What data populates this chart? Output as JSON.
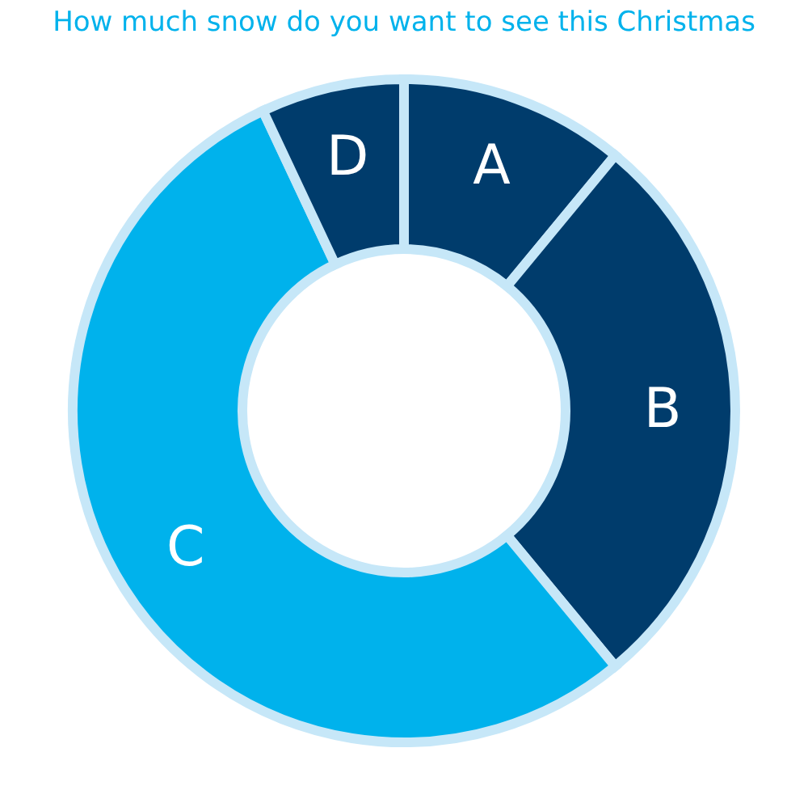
{
  "chart_data": {
    "type": "donut",
    "title": "How much snow do you want to see this Christmas",
    "categories": [
      "A",
      "B",
      "C",
      "D"
    ],
    "values": [
      11,
      28,
      54,
      7
    ],
    "colors": [
      "#003c6c",
      "#003c6c",
      "#00b2ec",
      "#003c6c"
    ]
  }
}
